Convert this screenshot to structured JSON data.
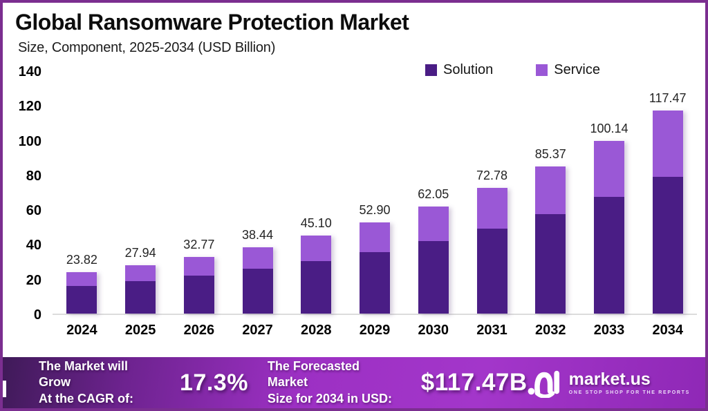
{
  "header": {
    "title": "Global Ransomware Protection Market",
    "subtitle": "Size, Component, 2025-2034 (USD Billion)"
  },
  "chart_data": {
    "type": "bar",
    "stacked": true,
    "title": "Global Ransomware Protection Market",
    "subtitle": "Size, Component, 2025-2034 (USD Billion)",
    "xlabel": "",
    "ylabel": "USD Billion",
    "ylim": [
      0,
      140
    ],
    "yticks": [
      0,
      20,
      40,
      60,
      80,
      100,
      120,
      140
    ],
    "grid": false,
    "legend_position": "top-right",
    "categories": [
      "2024",
      "2025",
      "2026",
      "2027",
      "2028",
      "2029",
      "2030",
      "2031",
      "2032",
      "2033",
      "2034"
    ],
    "series": [
      {
        "name": "Solution",
        "color": "#4A1D85",
        "values": [
          16.08,
          18.86,
          22.12,
          25.95,
          30.44,
          35.71,
          41.88,
          49.13,
          57.62,
          67.59,
          79.29
        ]
      },
      {
        "name": "Service",
        "color": "#9A58D6",
        "values": [
          7.74,
          9.08,
          10.65,
          12.49,
          14.66,
          17.19,
          20.17,
          23.65,
          27.75,
          32.55,
          38.18
        ]
      }
    ],
    "totals": [
      23.82,
      27.94,
      32.77,
      38.44,
      45.1,
      52.9,
      62.05,
      72.78,
      85.37,
      100.14,
      117.47
    ],
    "total_labels": [
      "23.82",
      "27.94",
      "32.77",
      "38.44",
      "45.10",
      "52.90",
      "62.05",
      "72.78",
      "85.37",
      "100.14",
      "117.47"
    ]
  },
  "footer": {
    "cagr_text_line1": "The Market will Grow",
    "cagr_text_line2": "At the CAGR of:",
    "cagr_value": "17.3%",
    "forecast_text_line1": "The Forecasted Market",
    "forecast_text_line2": "Size for 2034 in USD:",
    "forecast_value": "$117.47B",
    "brand_name": "market.us",
    "brand_tagline": "ONE STOP SHOP FOR THE REPORTS"
  },
  "colors": {
    "frame_border": "#7B2E90",
    "footer_gradient_start": "#3F1A58",
    "footer_gradient_mid": "#9C30C3",
    "solution": "#4A1D85",
    "service": "#9A58D6"
  }
}
